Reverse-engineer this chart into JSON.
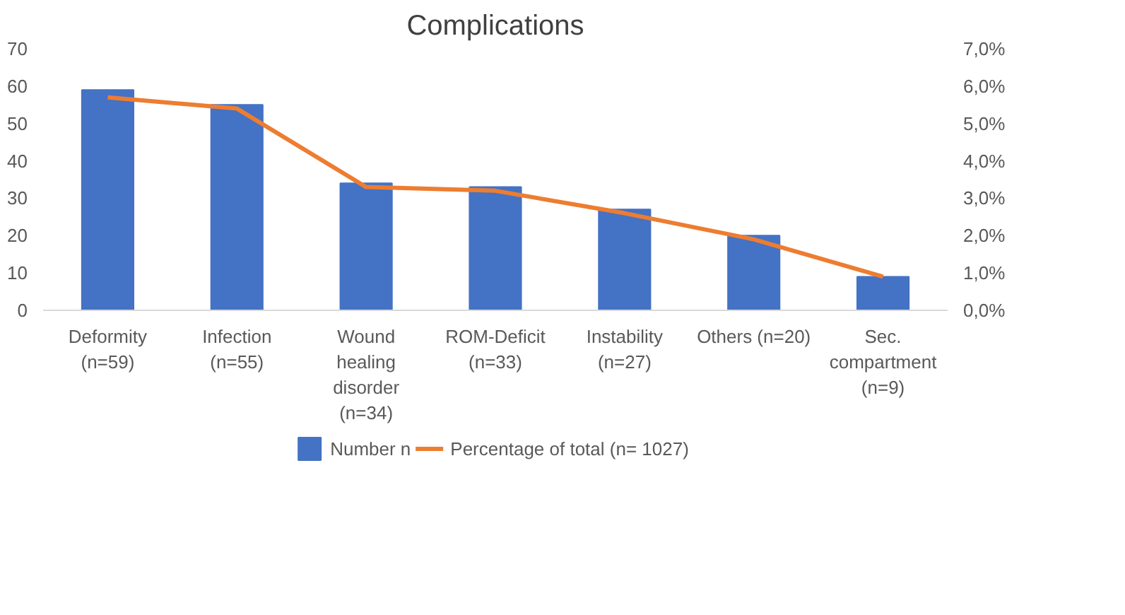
{
  "chart_data": {
    "type": "bar",
    "title": "Complications",
    "categories": [
      "Deformity\n(n=59)",
      "Infection\n(n=55)",
      "Wound\nhealing\ndisorder\n(n=34)",
      "ROM-Deficit\n(n=33)",
      "Instability\n(n=27)",
      "Others (n=20)",
      "Sec.\ncompartment\n(n=9)"
    ],
    "series": [
      {
        "name": "Number n",
        "type": "bar",
        "color": "#4472c4",
        "values": [
          59,
          55,
          34,
          33,
          27,
          20,
          9
        ]
      },
      {
        "name": "Percentage of total (n= 1027)",
        "type": "line",
        "axis": "y2",
        "color": "#ed7d31",
        "values": [
          5.7,
          5.4,
          3.3,
          3.2,
          2.6,
          1.9,
          0.9
        ]
      }
    ],
    "ylim": [
      0,
      70
    ],
    "yticks": [
      0,
      10,
      20,
      30,
      40,
      50,
      60,
      70
    ],
    "y2lim": [
      0,
      7
    ],
    "y2ticks": [
      {
        "value": 0,
        "label": "0,0%"
      },
      {
        "value": 1,
        "label": "1,0%"
      },
      {
        "value": 2,
        "label": "2,0%"
      },
      {
        "value": 3,
        "label": "3,0%"
      },
      {
        "value": 4,
        "label": "4,0%"
      },
      {
        "value": 5,
        "label": "5,0%"
      },
      {
        "value": 6,
        "label": "6,0%"
      },
      {
        "value": 7,
        "label": "7,0%"
      }
    ],
    "grid": false,
    "legend": "bottom",
    "marker": "none",
    "line_style": "solid"
  }
}
